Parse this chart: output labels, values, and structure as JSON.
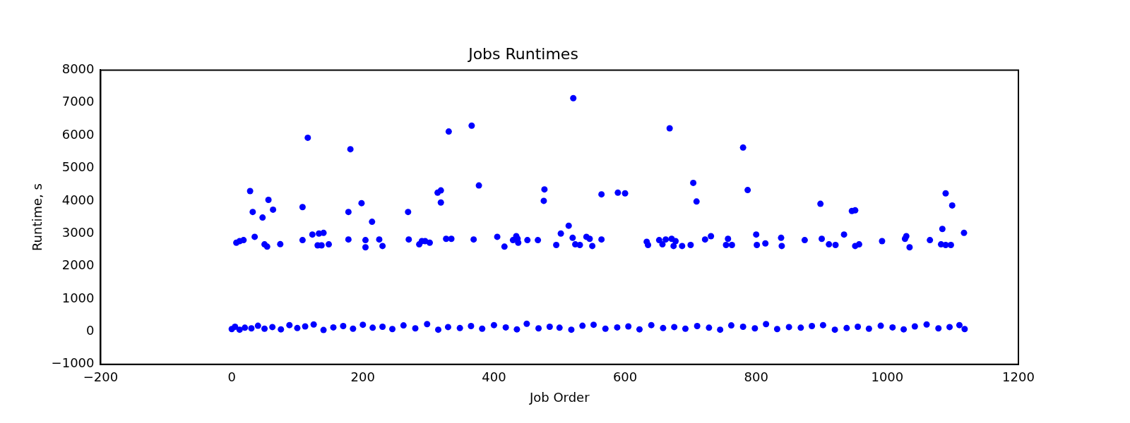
{
  "chart_data": {
    "type": "scatter",
    "title": "Jobs Runtimes",
    "xlabel": "Job Order",
    "ylabel": "Runtime, s",
    "xlim": [
      -200,
      1200
    ],
    "xticks": [
      -200,
      0,
      200,
      400,
      600,
      800,
      1000,
      1200
    ],
    "ylim": [
      -1000,
      8000
    ],
    "yticks": [
      -1000,
      0,
      1000,
      2000,
      3000,
      4000,
      5000,
      6000,
      7000,
      8000
    ],
    "grid": false,
    "legend": false,
    "marker": "circle",
    "series": [
      {
        "color": "#0000ff",
        "x": [
          7,
          12,
          18,
          28,
          32,
          35,
          47,
          50,
          54,
          56,
          63,
          74,
          108,
          108,
          116,
          123,
          131,
          137,
          133,
          140,
          148,
          178,
          178,
          181,
          198,
          204,
          204,
          214,
          225,
          230,
          269,
          270,
          286,
          290,
          295,
          302,
          314,
          319,
          319,
          327,
          335,
          331,
          366,
          369,
          377,
          405,
          416,
          429,
          434,
          436,
          437,
          451,
          467,
          476,
          477,
          495,
          502,
          514,
          520,
          521,
          524,
          531,
          541,
          546,
          550,
          564,
          564,
          589,
          600,
          633,
          635,
          652,
          657,
          662,
          668,
          671,
          674,
          677,
          687,
          700,
          704,
          709,
          722,
          731,
          754,
          757,
          763,
          780,
          787,
          800,
          801,
          814,
          838,
          839,
          874,
          898,
          900,
          911,
          921,
          934,
          946,
          951,
          951,
          957,
          992,
          1027,
          1029,
          1034,
          1065,
          1084,
          1082,
          1089,
          1097,
          1089,
          1099,
          1117,
          0,
          5,
          12,
          20,
          30,
          40,
          50,
          62,
          75,
          88,
          100,
          112,
          125,
          140,
          155,
          170,
          185,
          200,
          215,
          230,
          245,
          262,
          280,
          298,
          315,
          330,
          348,
          365,
          382,
          400,
          418,
          435,
          450,
          468,
          485,
          500,
          518,
          535,
          552,
          570,
          588,
          605,
          622,
          640,
          658,
          675,
          692,
          710,
          728,
          745,
          762,
          780,
          798,
          815,
          832,
          850,
          868,
          885,
          902,
          920,
          938,
          955,
          972,
          990,
          1008,
          1025,
          1042,
          1060,
          1078,
          1095,
          1110,
          1118
        ],
        "values": [
          2720,
          2770,
          2800,
          4300,
          3660,
          2900,
          3490,
          2670,
          2600,
          4030,
          3730,
          2675,
          2800,
          3810,
          5930,
          2970,
          2640,
          2640,
          3000,
          3020,
          2670,
          2820,
          3660,
          5580,
          3930,
          2800,
          2580,
          3360,
          2820,
          2620,
          3660,
          2820,
          2670,
          2770,
          2770,
          2720,
          4250,
          4320,
          3950,
          2840,
          2840,
          6120,
          6300,
          2820,
          4470,
          2900,
          2600,
          2800,
          2920,
          2840,
          2720,
          2800,
          2800,
          4000,
          4350,
          2650,
          3000,
          3240,
          2870,
          7140,
          2670,
          2650,
          2900,
          2840,
          2620,
          2820,
          4200,
          4250,
          4230,
          2750,
          2650,
          2800,
          2670,
          2820,
          6220,
          2840,
          2620,
          2770,
          2620,
          2650,
          4550,
          3980,
          2820,
          2920,
          2650,
          2840,
          2650,
          5630,
          4330,
          2970,
          2650,
          2700,
          2870,
          2620,
          2800,
          3910,
          2840,
          2670,
          2650,
          2970,
          3690,
          3710,
          2620,
          2670,
          2770,
          2840,
          2920,
          2580,
          2800,
          3140,
          2670,
          2650,
          2650,
          4230,
          3860,
          3020,
          80,
          150,
          60,
          120,
          100,
          180,
          90,
          140,
          70,
          200,
          110,
          160,
          220,
          50,
          130,
          170,
          90,
          210,
          120,
          150,
          80,
          190,
          100,
          230,
          60,
          140,
          110,
          170,
          90,
          200,
          130,
          70,
          240,
          100,
          150,
          120,
          60,
          180,
          210,
          90,
          130,
          160,
          70,
          200,
          110,
          140,
          90,
          170,
          120,
          60,
          190,
          150,
          100,
          230,
          80,
          140,
          120,
          170,
          200,
          60,
          110,
          150,
          90,
          180,
          130,
          70,
          160,
          220,
          100,
          140,
          200,
          80
        ]
      }
    ]
  }
}
